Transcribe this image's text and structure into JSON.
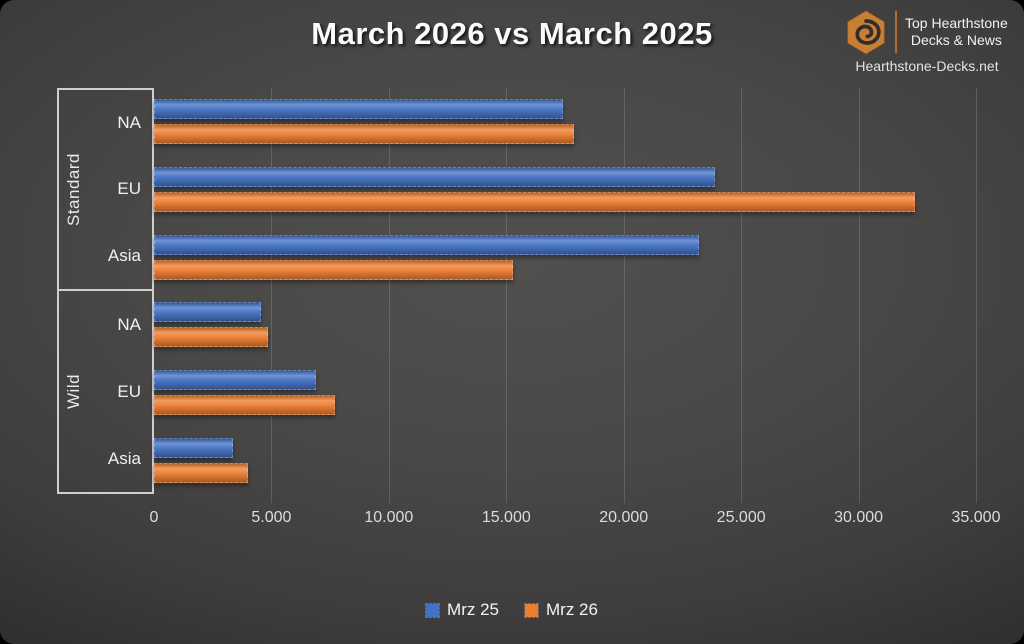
{
  "title": "March 2026 vs March 2025",
  "branding": {
    "name_line1": "Top Hearthstone",
    "name_line2": "Decks & News",
    "site": "Hearthstone-Decks.net",
    "accent_color": "#c87f33"
  },
  "colors": {
    "series_blue": "#4472C4",
    "series_orange": "#ED7D31",
    "background": "#494847",
    "frame_border": "#cfcfcf",
    "gridline": "rgba(255,255,255,0.15)",
    "tick_text": "#dcdcdc"
  },
  "chart_data": {
    "type": "bar",
    "orientation": "horizontal",
    "title": "March 2026 vs March 2025",
    "legend_position": "bottom",
    "grid": true,
    "series": [
      {
        "name": "Mrz 25",
        "color": "#4472C4"
      },
      {
        "name": "Mrz 26",
        "color": "#ED7D31"
      }
    ],
    "groups": [
      {
        "label": "Standard",
        "rows": [
          {
            "label": "NA",
            "values": [
              17400,
              17900
            ]
          },
          {
            "label": "EU",
            "values": [
              23900,
              32400
            ]
          },
          {
            "label": "Asia",
            "values": [
              23200,
              15300
            ]
          }
        ]
      },
      {
        "label": "Wild",
        "rows": [
          {
            "label": "NA",
            "values": [
              4550,
              4850
            ]
          },
          {
            "label": "EU",
            "values": [
              6900,
              7700
            ]
          },
          {
            "label": "Asia",
            "values": [
              3350,
              4000
            ]
          }
        ]
      }
    ],
    "x_axis": {
      "min": 0,
      "max": 35000,
      "tick_step": 5000,
      "tick_labels": [
        "0",
        "5.000",
        "10.000",
        "15.000",
        "20.000",
        "25.000",
        "30.000",
        "35.000"
      ]
    }
  }
}
